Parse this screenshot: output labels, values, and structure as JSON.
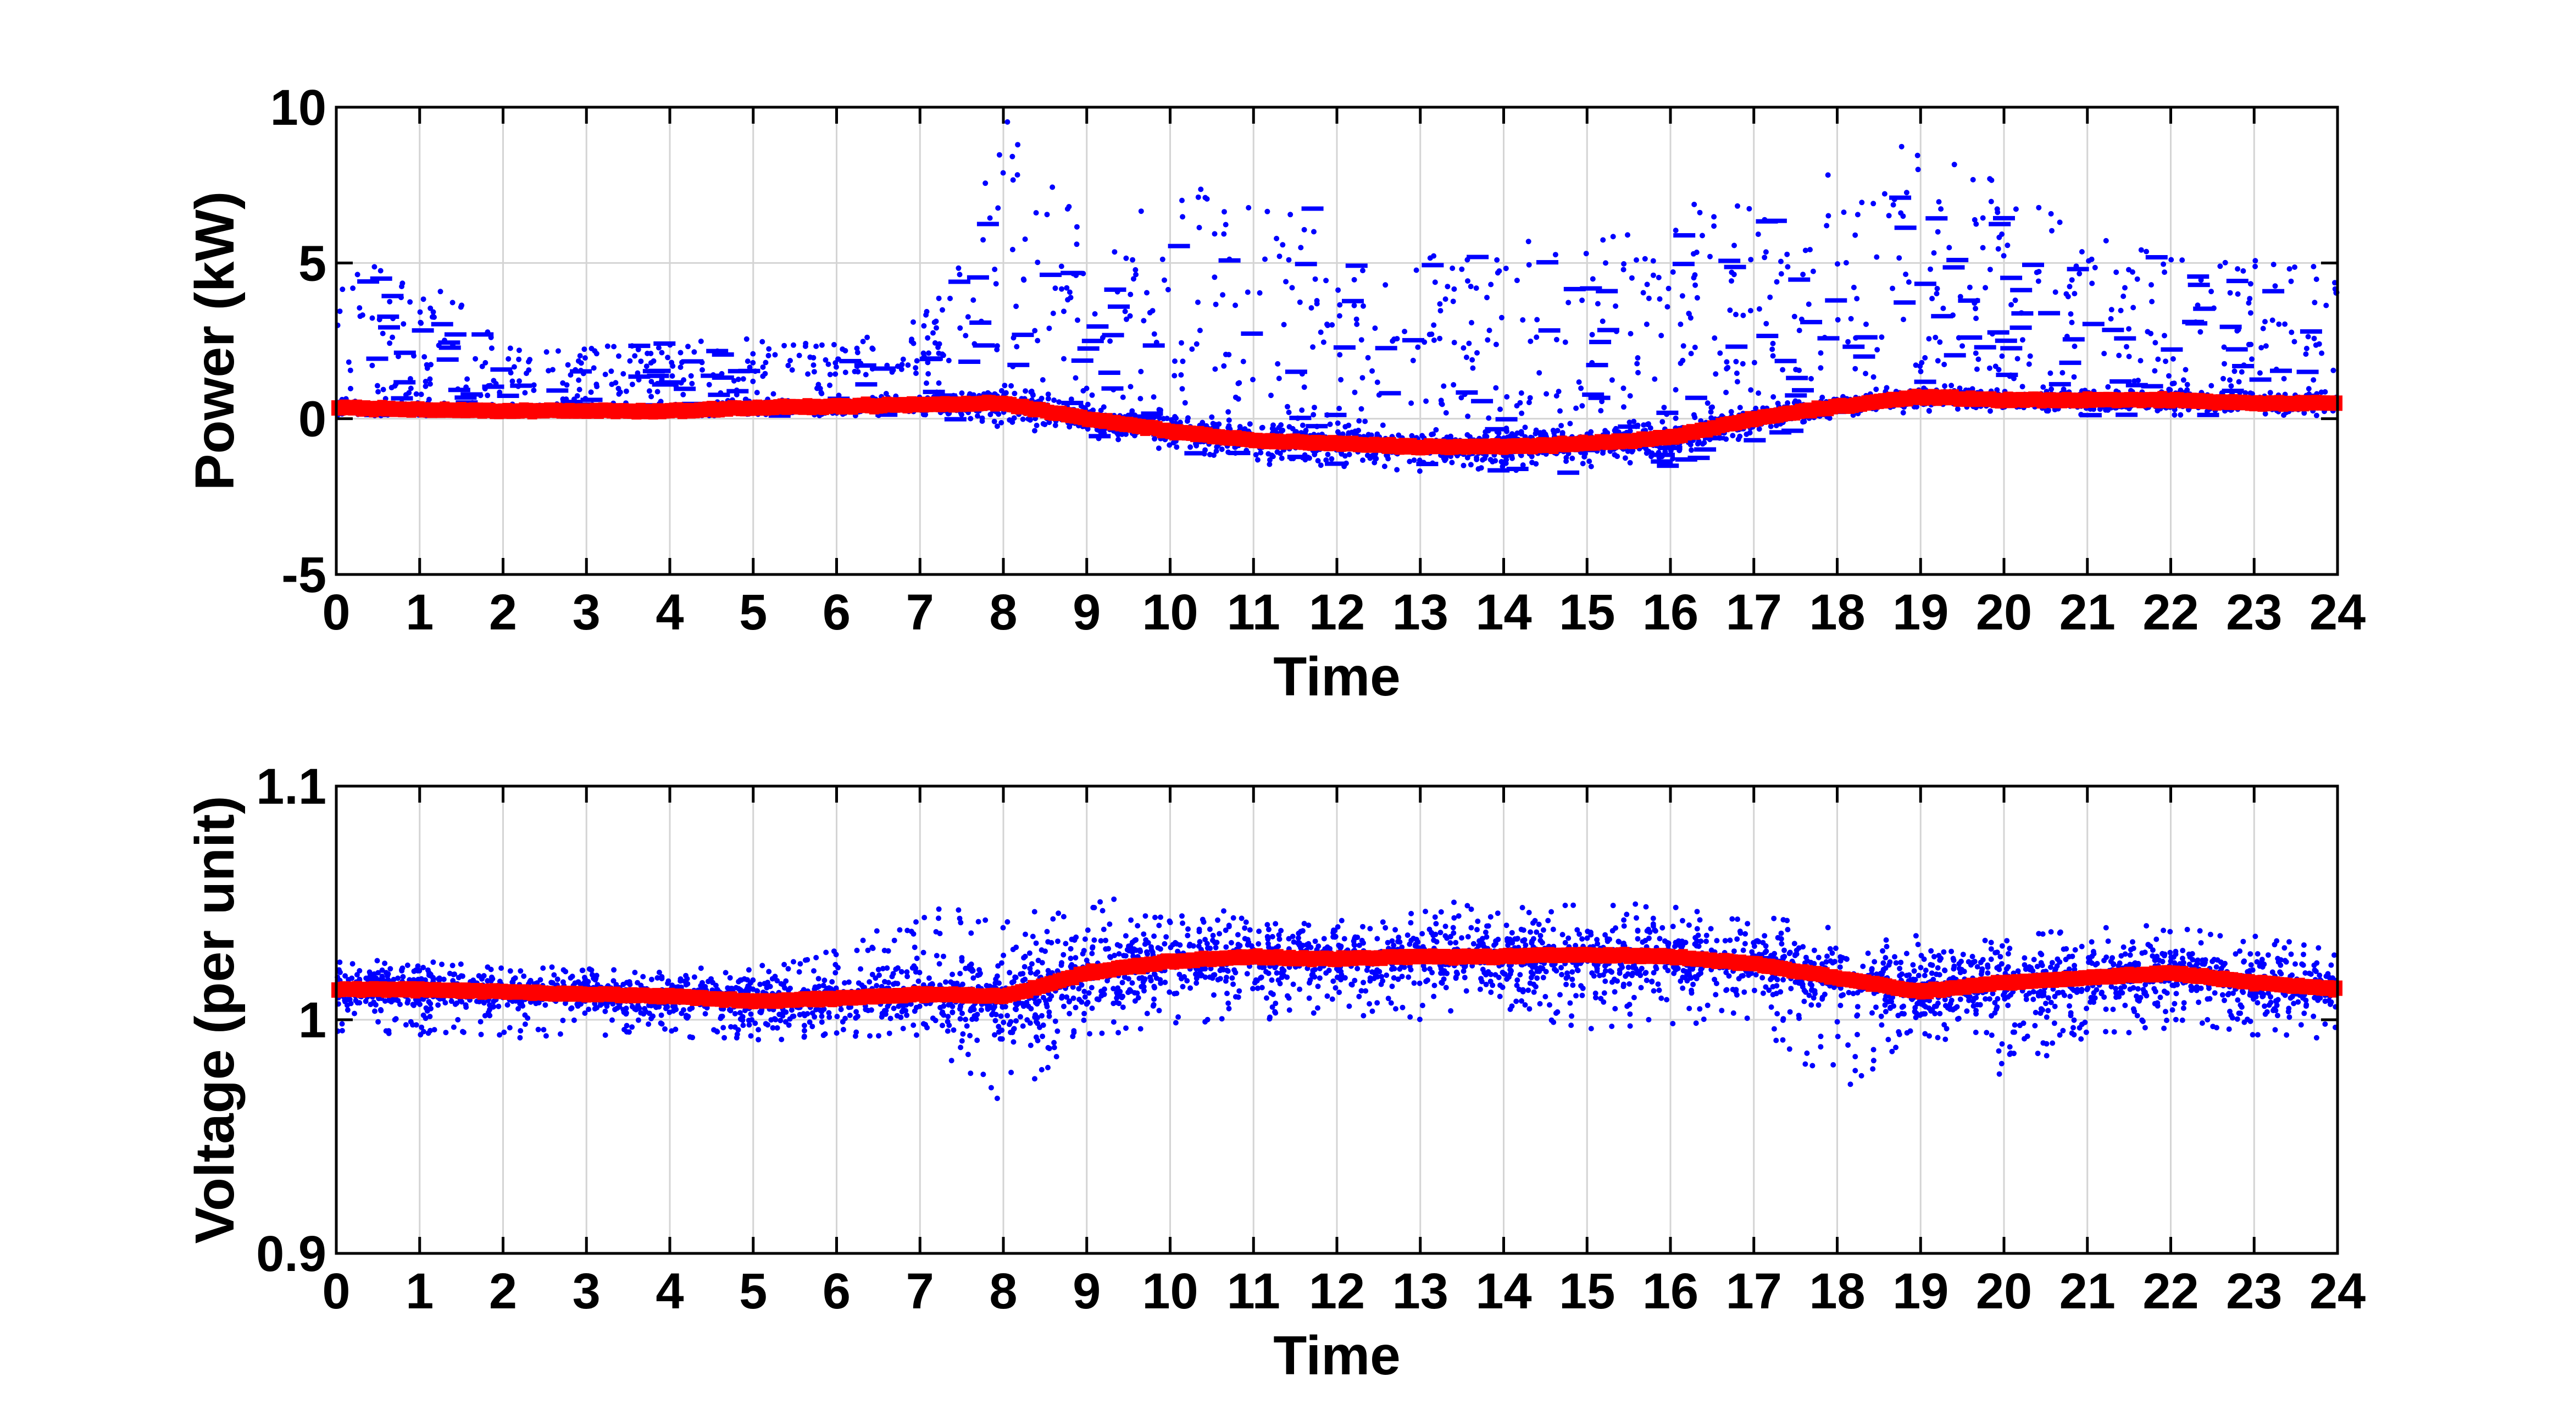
{
  "chart_data": [
    {
      "type": "scatter",
      "xlabel": "Time",
      "ylabel": "Power (kW)",
      "xlim": [
        0,
        24
      ],
      "ylim": [
        -5,
        10
      ],
      "xticks": [
        0,
        1,
        2,
        3,
        4,
        5,
        6,
        7,
        8,
        9,
        10,
        11,
        12,
        13,
        14,
        15,
        16,
        17,
        18,
        19,
        20,
        21,
        22,
        23,
        24
      ],
      "yticks": [
        -5,
        0,
        5,
        10
      ],
      "grid": true,
      "colors": {
        "samples": "#0000ff",
        "mean": "#ff0000"
      },
      "series": [
        {
          "role": "samples",
          "x": [
            0,
            1,
            2,
            3,
            4,
            5,
            6,
            7,
            7.5,
            8,
            9,
            10,
            11,
            12,
            13,
            14,
            15,
            16,
            16.5,
            17,
            17.5,
            18,
            19,
            20,
            21,
            22,
            23,
            24
          ],
          "y_min": [
            0.1,
            0.1,
            0.1,
            0.1,
            0.1,
            0.1,
            0.1,
            0.1,
            -0.1,
            -0.3,
            -0.6,
            -1.1,
            -1.5,
            -1.7,
            -1.7,
            -1.8,
            -1.7,
            -1.5,
            -1.1,
            -0.6,
            -0.3,
            0.0,
            0.2,
            0.2,
            0.1,
            0.1,
            0.1,
            0.1
          ],
          "y_max": [
            5.0,
            4.8,
            2.5,
            2.3,
            2.5,
            2.6,
            2.4,
            3.2,
            5.0,
            9.8,
            6.0,
            7.5,
            8.0,
            6.3,
            5.2,
            5.6,
            6.0,
            6.0,
            8.3,
            6.9,
            5.0,
            8.8,
            8.8,
            7.5,
            6.0,
            5.3,
            5.1,
            5.0
          ]
        },
        {
          "role": "mean",
          "x": [
            0,
            1,
            2,
            3,
            4,
            5,
            6,
            7,
            8,
            9,
            10,
            11,
            12,
            13,
            14,
            15,
            16,
            17,
            18,
            19,
            20,
            21,
            22,
            23,
            24
          ],
          "y": [
            0.35,
            0.3,
            0.25,
            0.25,
            0.25,
            0.35,
            0.4,
            0.45,
            0.5,
            0.0,
            -0.4,
            -0.7,
            -0.8,
            -0.9,
            -0.9,
            -0.8,
            -0.6,
            0.0,
            0.4,
            0.7,
            0.6,
            0.6,
            0.6,
            0.5,
            0.5
          ]
        }
      ]
    },
    {
      "type": "scatter",
      "xlabel": "Time",
      "ylabel": "Voltage (per unit)",
      "xlim": [
        0,
        24
      ],
      "ylim": [
        0.9,
        1.1
      ],
      "xticks": [
        0,
        1,
        2,
        3,
        4,
        5,
        6,
        7,
        8,
        9,
        10,
        11,
        12,
        13,
        14,
        15,
        16,
        17,
        18,
        19,
        20,
        21,
        22,
        23,
        24
      ],
      "yticks": [
        0.9,
        1,
        1.1
      ],
      "ytick_labels": [
        "0.9",
        "1",
        "1.1"
      ],
      "grid": true,
      "colors": {
        "samples": "#0000ff",
        "mean": "#ff0000"
      },
      "series": [
        {
          "role": "samples",
          "x": [
            0,
            1,
            2,
            3,
            4,
            5,
            6,
            7,
            8,
            9,
            10,
            11,
            12,
            13,
            14,
            15,
            16,
            17,
            18,
            19,
            20,
            21,
            22,
            23,
            24
          ],
          "y_min": [
            0.995,
            0.993,
            0.992,
            0.993,
            0.993,
            0.99,
            0.993,
            0.993,
            0.964,
            0.992,
            0.996,
            1.0,
            1.0,
            1.0,
            1.0,
            0.995,
            0.997,
            0.997,
            0.966,
            0.995,
            0.974,
            0.993,
            0.995,
            0.993,
            0.992
          ],
          "y_max": [
            1.027,
            1.025,
            1.024,
            1.022,
            1.022,
            1.024,
            1.03,
            1.052,
            1.042,
            1.054,
            1.048,
            1.046,
            1.046,
            1.05,
            1.052,
            1.05,
            1.05,
            1.046,
            1.04,
            1.036,
            1.036,
            1.04,
            1.042,
            1.036,
            1.03
          ]
        },
        {
          "role": "mean",
          "x": [
            0,
            1,
            2,
            3,
            4,
            5,
            6,
            7,
            8,
            9,
            10,
            11,
            12,
            13,
            14,
            15,
            16,
            17,
            18,
            19,
            20,
            21,
            22,
            23,
            24
          ],
          "y": [
            1.013,
            1.013,
            1.012,
            1.011,
            1.01,
            1.008,
            1.009,
            1.011,
            1.01,
            1.02,
            1.025,
            1.027,
            1.026,
            1.027,
            1.027,
            1.028,
            1.027,
            1.024,
            1.018,
            1.012,
            1.016,
            1.018,
            1.02,
            1.016,
            1.013
          ]
        }
      ]
    }
  ]
}
